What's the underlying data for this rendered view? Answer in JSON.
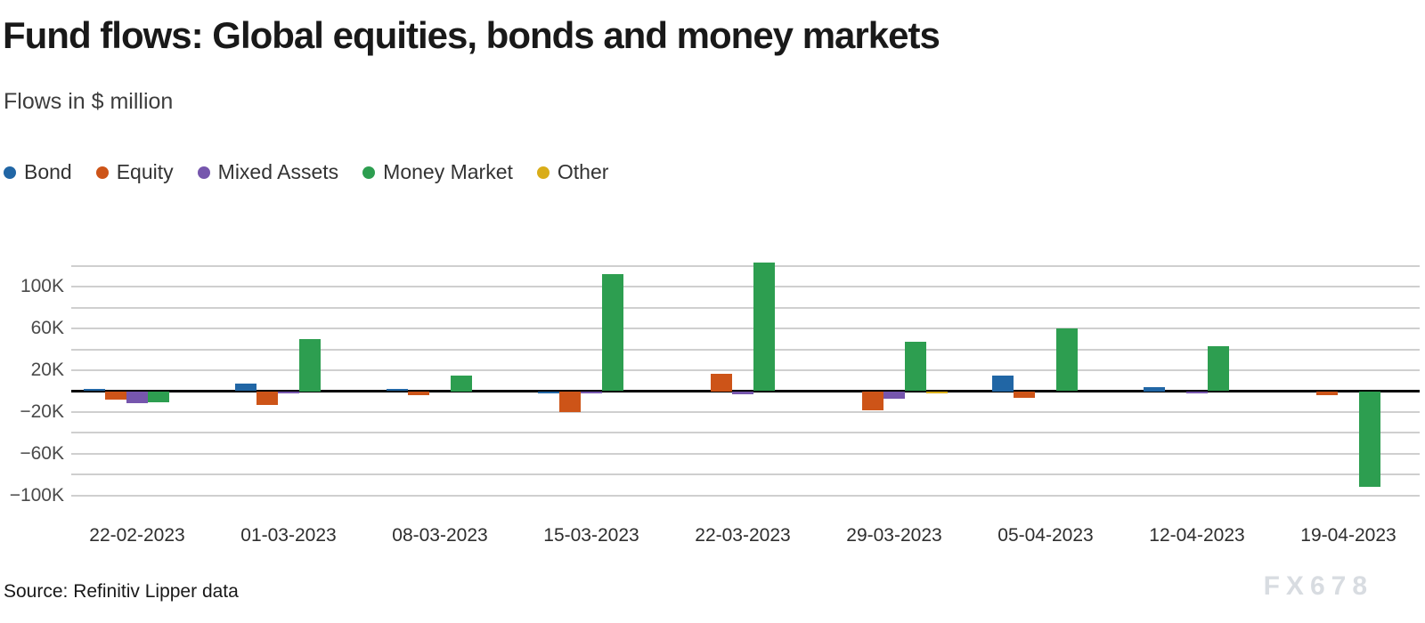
{
  "header": {
    "title": "Fund flows: Global equities, bonds and money markets",
    "subtitle": "Flows in $ million"
  },
  "footer": {
    "source": "Source: Refinitiv Lipper data",
    "watermark": "FX678"
  },
  "chart_data": {
    "type": "bar",
    "title": "Fund flows: Global equities, bonds and money markets",
    "subtitle": "Flows in $ million",
    "unit": "$ million",
    "legend_position": "top-left",
    "grid": true,
    "categories": [
      "22-02-2023",
      "01-03-2023",
      "08-03-2023",
      "15-03-2023",
      "22-03-2023",
      "29-03-2023",
      "05-04-2023",
      "12-04-2023",
      "19-04-2023"
    ],
    "series": [
      {
        "name": "Bond",
        "color": "#2166a5",
        "values": [
          2000,
          7000,
          2000,
          -1500,
          0,
          0,
          15000,
          4000,
          0
        ]
      },
      {
        "name": "Equity",
        "color": "#cd5418",
        "values": [
          -8000,
          -13000,
          -3000,
          -20000,
          17000,
          -18000,
          -6000,
          0,
          -3000
        ]
      },
      {
        "name": "Mixed Assets",
        "color": "#7656ad",
        "values": [
          -11000,
          -1000,
          0,
          -1500,
          -2500,
          -7000,
          0,
          -1500,
          0
        ]
      },
      {
        "name": "Money Market",
        "color": "#2d9e50",
        "values": [
          -10000,
          50000,
          15000,
          112000,
          123000,
          47000,
          60000,
          43000,
          -91000
        ]
      },
      {
        "name": "Other",
        "color": "#d9ad19",
        "values": [
          0,
          0,
          0,
          0,
          0,
          -1000,
          0,
          0,
          0
        ]
      }
    ],
    "axis": {
      "grid_max": 120000,
      "grid_min": -100000,
      "grid_step": 20000,
      "ylim": [
        -110000,
        125000
      ],
      "ticks": [
        {
          "value": 100000,
          "label": "100K"
        },
        {
          "value": 60000,
          "label": "60K"
        },
        {
          "value": 20000,
          "label": "20K"
        },
        {
          "value": -20000,
          "label": "−20K"
        },
        {
          "value": -60000,
          "label": "−60K"
        },
        {
          "value": -100000,
          "label": "−100K"
        }
      ]
    }
  }
}
